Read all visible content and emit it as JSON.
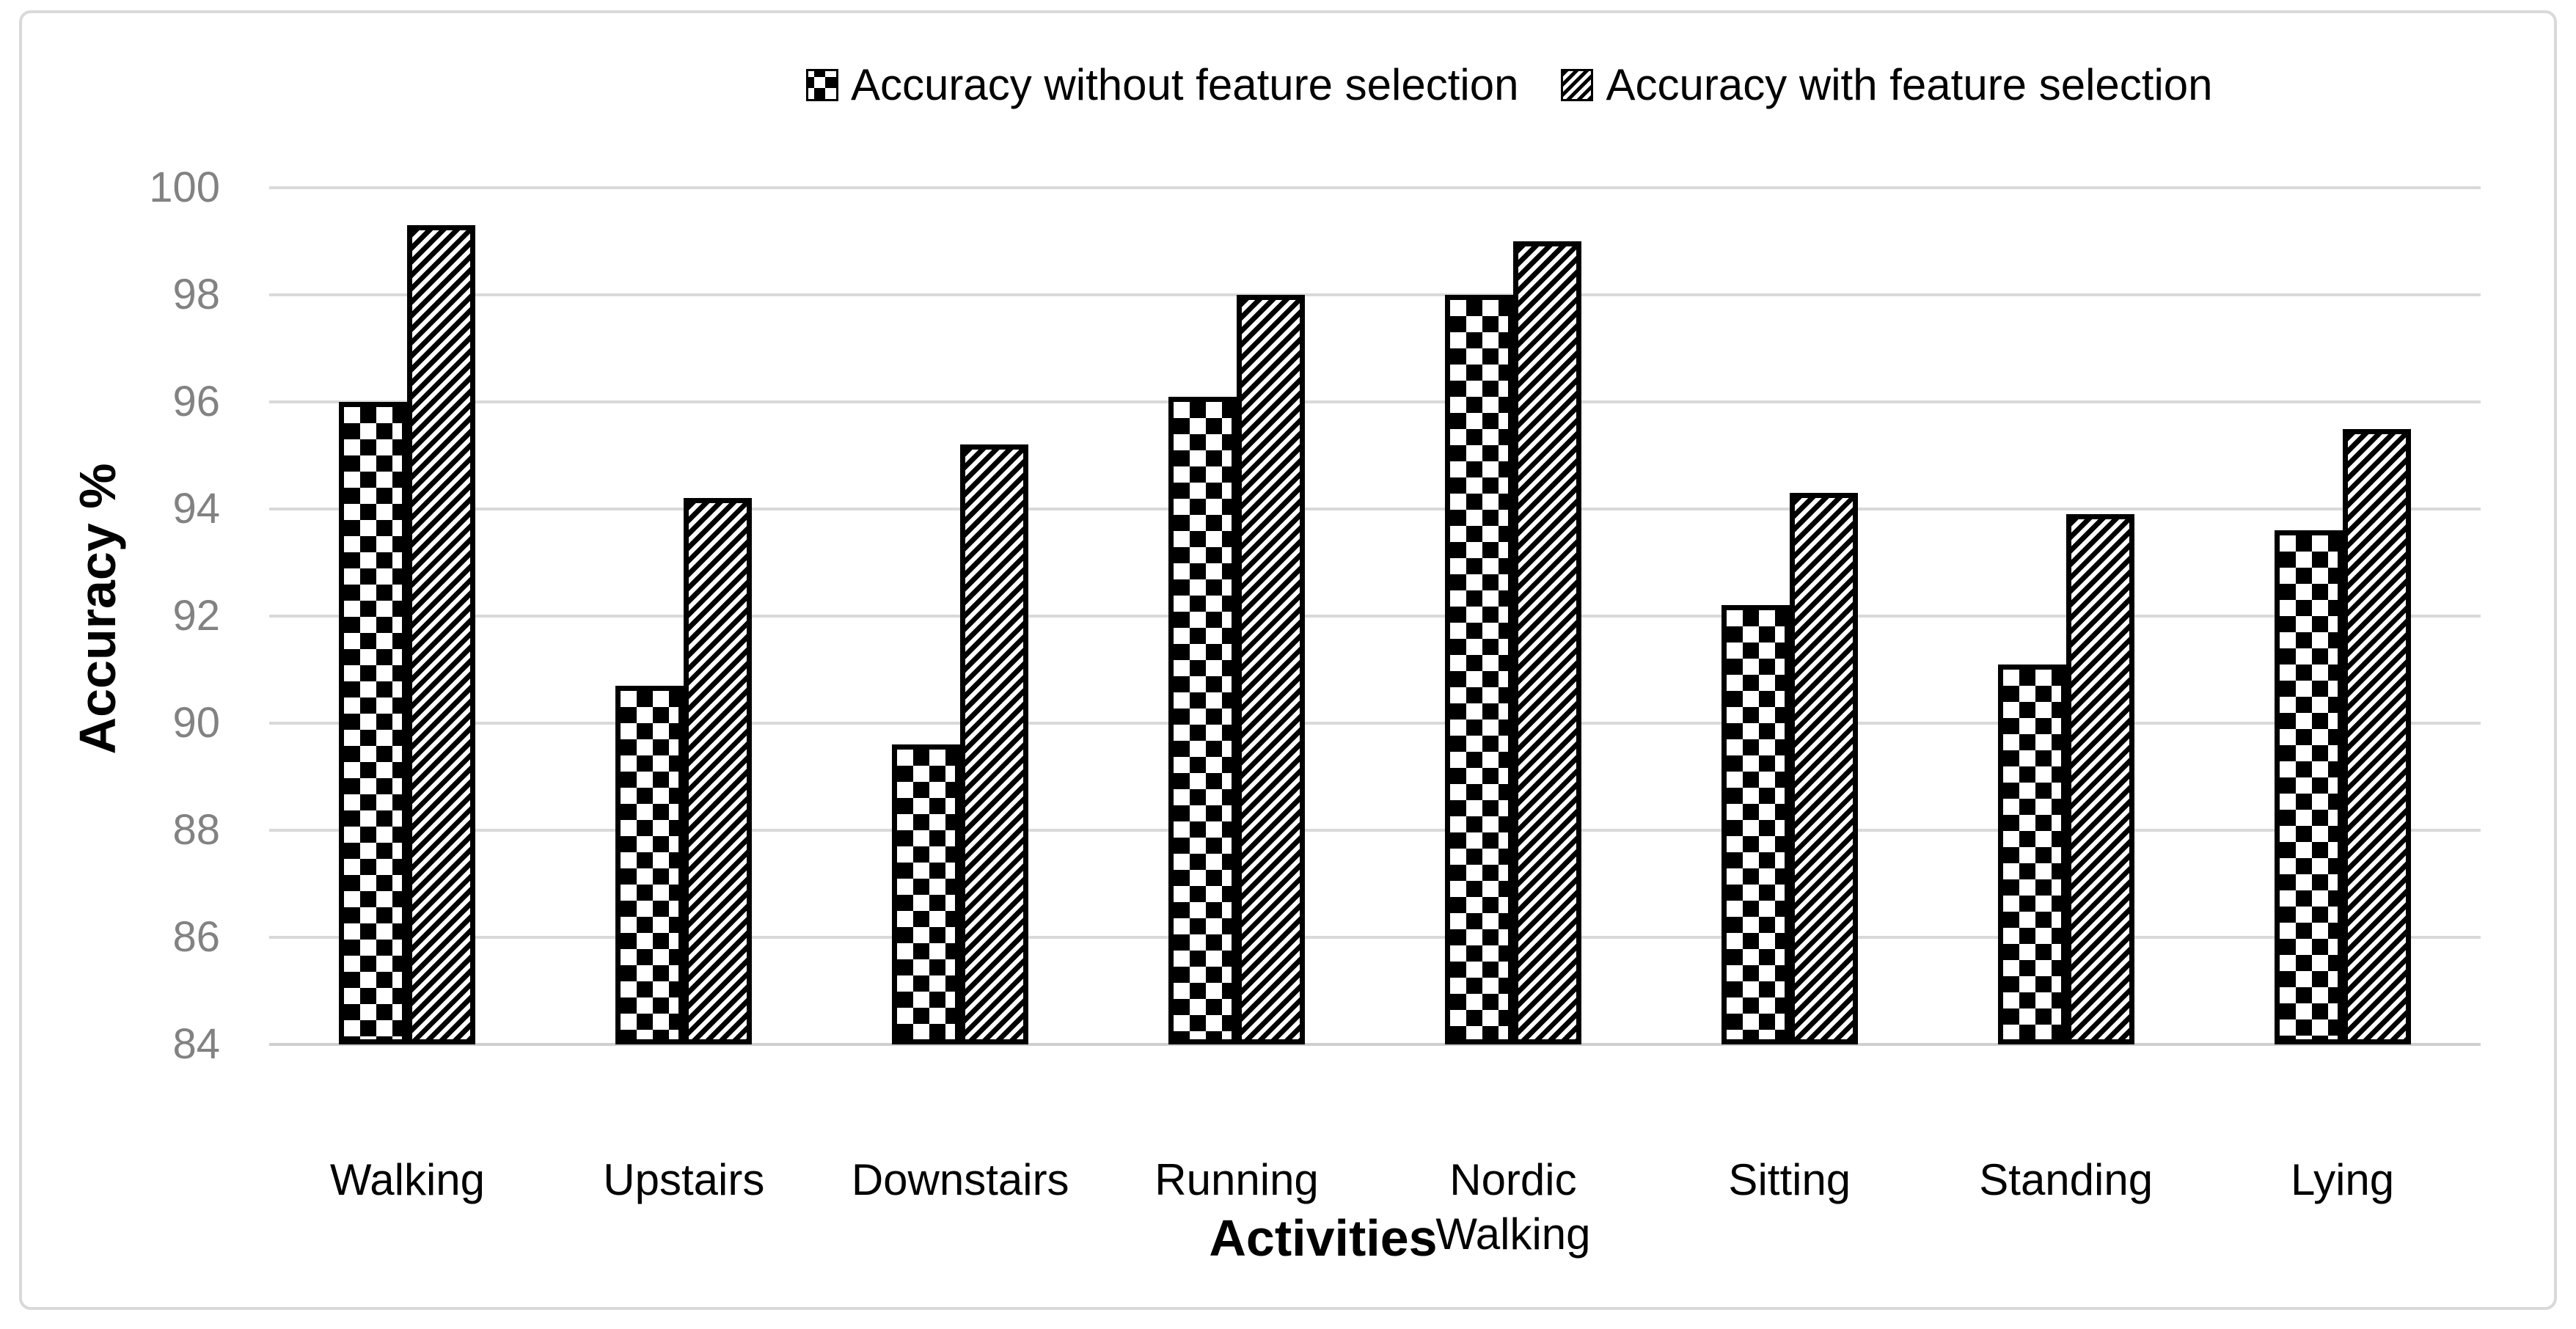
{
  "chart_data": {
    "type": "bar",
    "title": "",
    "categories": [
      "Walking",
      "Upstairs",
      "Downstairs",
      "Running",
      "Nordic Walking",
      "Sitting",
      "Standing",
      "Lying"
    ],
    "series": [
      {
        "name": "Accuracy without feature selection",
        "pattern": "checker",
        "values": [
          96.0,
          90.7,
          89.6,
          96.1,
          98.0,
          92.2,
          91.1,
          93.6
        ]
      },
      {
        "name": "Accuracy with feature selection",
        "pattern": "diagonal-hatch",
        "values": [
          99.3,
          94.2,
          95.2,
          98.0,
          99.0,
          94.3,
          93.9,
          95.5
        ]
      }
    ],
    "xlabel": "Activities",
    "ylabel": "Accuracy %",
    "ylim": [
      84,
      100
    ],
    "yticks": [
      84,
      86,
      88,
      90,
      92,
      94,
      96,
      98,
      100
    ],
    "grid": true,
    "legend_position": "top",
    "colors": {
      "pattern_color": "#000000",
      "bar_background": "#ffffff",
      "gridline": "#d9d9d9",
      "axis_line": "#cfcfcf",
      "tick_label": "#828282",
      "text": "#000000",
      "chart_border": "#d9d9d9",
      "background": "#ffffff"
    }
  }
}
